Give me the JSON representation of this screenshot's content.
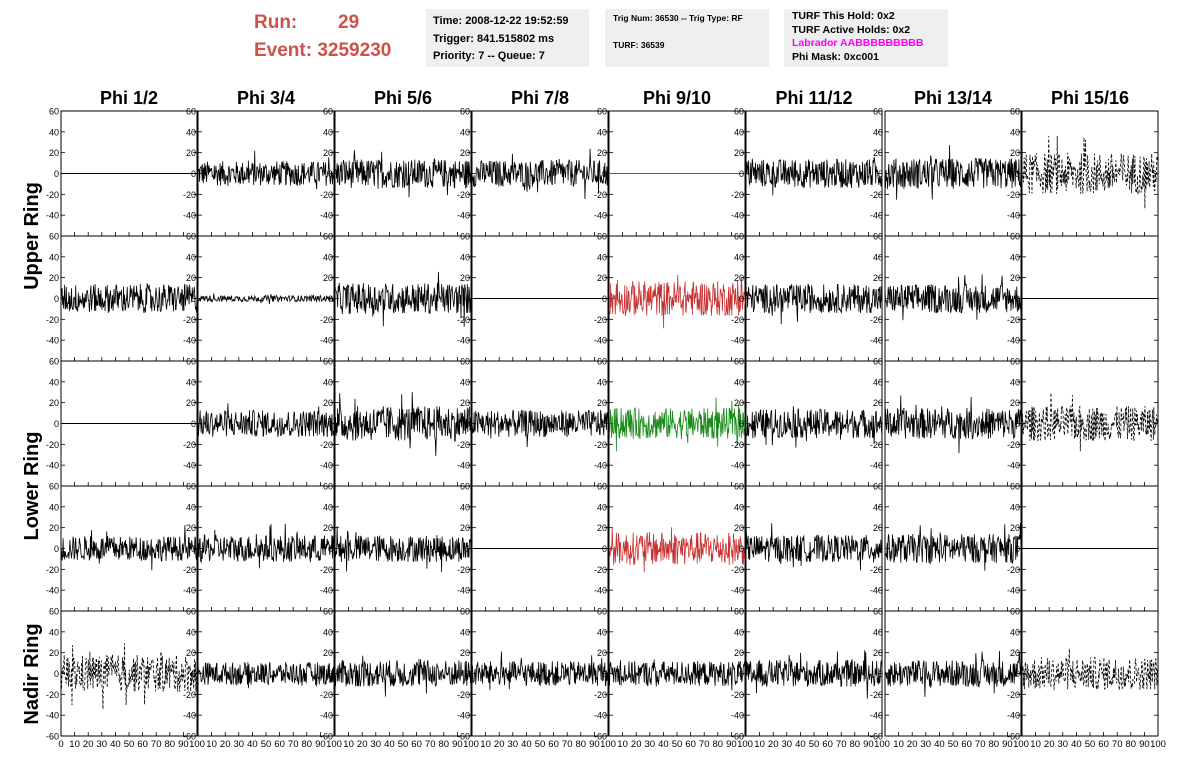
{
  "header": {
    "run_label": "Run:",
    "run_value": "29",
    "event_label": "Event:",
    "event_value": "3259230",
    "time_line": "Time: 2008-12-22 19:52:59",
    "trigger_line": "Trigger: 841.515802 ms",
    "priority_line": "Priority: 7 -- Queue: 7",
    "trig_line": "Trig Num: 36530 -- Trig Type: RF",
    "turf_line": "TURF: 36539",
    "turf_hold_line": "TURF This Hold: 0x2",
    "turf_active_line": "TURF Active Holds: 0x2",
    "labrador_line": "Labrador AABBBBBBBBB",
    "phi_mask_line": "Phi Mask: 0xc001",
    "labrador_color": "#ff00ff",
    "run_color": "#d0504a"
  },
  "chart_data": {
    "type": "line",
    "columns": [
      "Phi 1/2",
      "Phi 3/4",
      "Phi 5/6",
      "Phi 7/8",
      "Phi 9/10",
      "Phi 11/12",
      "Phi 13/14",
      "Phi 15/16"
    ],
    "rows": [
      "Upper Ring",
      "Lower Ring",
      "Nadir Ring"
    ],
    "xlim": [
      0,
      100
    ],
    "ylim": [
      -60,
      60
    ],
    "xticks": [
      0,
      10,
      20,
      30,
      40,
      50,
      60,
      70,
      80,
      90,
      100
    ],
    "yticks": [
      -60,
      -40,
      -20,
      0,
      20,
      40,
      60
    ],
    "ytick_labels_shown": [
      -40,
      -20,
      0,
      20,
      40,
      60
    ],
    "bottom_row_ytick_labels": [
      -60,
      -40,
      -20,
      0,
      20,
      40,
      60
    ],
    "panels": [
      [
        {
          "style": "flat",
          "color": "#000000",
          "amplitude": 0
        },
        {
          "style": "noise",
          "color": "#000000",
          "amplitude": 12
        },
        {
          "style": "noise",
          "color": "#000000",
          "amplitude": 14
        },
        {
          "style": "noise",
          "color": "#000000",
          "amplitude": 13
        },
        {
          "style": "flat",
          "color": "#1a8a1a",
          "amplitude": 0
        },
        {
          "style": "noise",
          "color": "#000000",
          "amplitude": 14
        },
        {
          "style": "noise",
          "color": "#000000",
          "amplitude": 15
        },
        {
          "style": "dashed",
          "color": "#000000",
          "amplitude": 20
        }
      ],
      [
        {
          "style": "noise",
          "color": "#000000",
          "amplitude": 14
        },
        {
          "style": "noise",
          "color": "#000000",
          "amplitude": 3
        },
        {
          "style": "noise",
          "color": "#000000",
          "amplitude": 15
        },
        {
          "style": "flat",
          "color": "#000000",
          "amplitude": 0
        },
        {
          "style": "noise",
          "color": "#c83232",
          "amplitude": 17
        },
        {
          "style": "noise",
          "color": "#000000",
          "amplitude": 14
        },
        {
          "style": "noise",
          "color": "#000000",
          "amplitude": 14
        },
        {
          "style": "flat",
          "color": "#000000",
          "amplitude": 0
        }
      ],
      [
        {
          "style": "flat",
          "color": "#000000",
          "amplitude": 0
        },
        {
          "style": "noise",
          "color": "#000000",
          "amplitude": 13
        },
        {
          "style": "noise",
          "color": "#000000",
          "amplitude": 17
        },
        {
          "style": "noise",
          "color": "#000000",
          "amplitude": 13
        },
        {
          "style": "noise",
          "color": "#1a8a1a",
          "amplitude": 15
        },
        {
          "style": "noise",
          "color": "#000000",
          "amplitude": 14
        },
        {
          "style": "noise",
          "color": "#000000",
          "amplitude": 15
        },
        {
          "style": "dashed",
          "color": "#000000",
          "amplitude": 17
        }
      ],
      [
        {
          "style": "noise",
          "color": "#000000",
          "amplitude": 12
        },
        {
          "style": "noise",
          "color": "#000000",
          "amplitude": 13
        },
        {
          "style": "noise",
          "color": "#000000",
          "amplitude": 13
        },
        {
          "style": "flat",
          "color": "#000000",
          "amplitude": 0
        },
        {
          "style": "noise",
          "color": "#c83232",
          "amplitude": 16
        },
        {
          "style": "noise",
          "color": "#000000",
          "amplitude": 13
        },
        {
          "style": "noise",
          "color": "#000000",
          "amplitude": 14
        },
        {
          "style": "flat",
          "color": "#000000",
          "amplitude": 0
        }
      ],
      [
        {
          "style": "dashed",
          "color": "#000000",
          "amplitude": 18
        },
        {
          "style": "noise",
          "color": "#000000",
          "amplitude": 11
        },
        {
          "style": "noise",
          "color": "#000000",
          "amplitude": 13
        },
        {
          "style": "noise",
          "color": "#000000",
          "amplitude": 12
        },
        {
          "style": "noise",
          "color": "#000000",
          "amplitude": 12
        },
        {
          "style": "noise",
          "color": "#000000",
          "amplitude": 13
        },
        {
          "style": "noise",
          "color": "#000000",
          "amplitude": 13
        },
        {
          "style": "dashed",
          "color": "#000000",
          "amplitude": 16
        }
      ]
    ]
  }
}
